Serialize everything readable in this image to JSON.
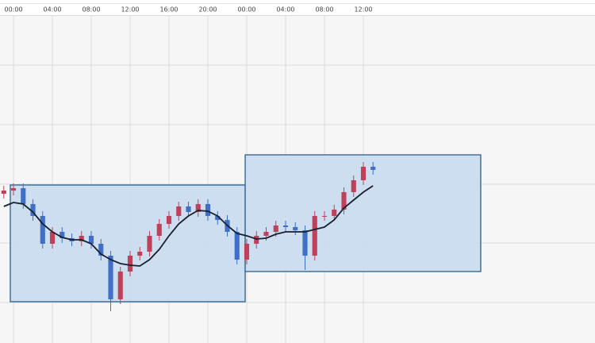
{
  "chart_data": {
    "type": "candlestick",
    "xlim": [
      -1.39,
      59.84
    ],
    "xticks": [
      {
        "value": 0,
        "label": "00:00"
      },
      {
        "value": 4,
        "label": "04:00"
      },
      {
        "value": 8,
        "label": "08:00"
      },
      {
        "value": 12,
        "label": "12:00"
      },
      {
        "value": 16,
        "label": "16:00"
      },
      {
        "value": 20,
        "label": "20:00"
      },
      {
        "value": 24,
        "label": "00:00"
      },
      {
        "value": 28,
        "label": "04:00"
      },
      {
        "value": 32,
        "label": "08:00"
      },
      {
        "value": 36,
        "label": "12:00"
      }
    ],
    "ylim": [
      0,
      412
    ],
    "hgrid": [
      51,
      126,
      200,
      275,
      350
    ],
    "grid": true,
    "up_color": "#c0405a",
    "down_color": "#3f6fc6",
    "x": [
      -1,
      0,
      1,
      2,
      3,
      4,
      5,
      6,
      7,
      8,
      9,
      10,
      11,
      12,
      13,
      14,
      15,
      16,
      17,
      18,
      19,
      20,
      21,
      22,
      23,
      24,
      25,
      26,
      27,
      28,
      29,
      30,
      31,
      32,
      33,
      34,
      35,
      36,
      37
    ],
    "open": [
      188,
      192,
      195,
      175,
      160,
      125,
      140,
      132,
      128,
      135,
      125,
      110,
      55,
      90,
      110,
      115,
      135,
      150,
      160,
      172,
      165,
      175,
      160,
      155,
      140,
      105,
      125,
      135,
      140,
      148,
      146,
      142,
      110,
      160,
      160,
      168,
      190,
      205,
      222
    ],
    "high": [
      198,
      201,
      201,
      181,
      166,
      146,
      146,
      138,
      141,
      141,
      131,
      116,
      96,
      116,
      121,
      141,
      156,
      166,
      178,
      178,
      181,
      181,
      166,
      161,
      146,
      131,
      141,
      146,
      154,
      154,
      152,
      148,
      166,
      166,
      174,
      196,
      211,
      228,
      228
    ],
    "low": [
      182,
      186,
      169,
      154,
      119,
      119,
      126,
      122,
      122,
      119,
      104,
      40,
      49,
      84,
      104,
      109,
      129,
      144,
      154,
      159,
      159,
      154,
      149,
      134,
      99,
      99,
      119,
      129,
      134,
      140,
      136,
      92,
      104,
      154,
      154,
      162,
      184,
      199,
      212
    ],
    "close": [
      192,
      195,
      175,
      160,
      125,
      140,
      132,
      128,
      135,
      125,
      110,
      55,
      90,
      110,
      115,
      135,
      150,
      160,
      172,
      165,
      175,
      160,
      155,
      140,
      105,
      125,
      135,
      140,
      148,
      146,
      142,
      110,
      160,
      160,
      168,
      190,
      205,
      222,
      218
    ],
    "moving_average": {
      "color": "#1a1f2e",
      "values": [
        172,
        177,
        175,
        165,
        150,
        140,
        133,
        130,
        130,
        125,
        112,
        105,
        100,
        98,
        97,
        105,
        118,
        135,
        150,
        160,
        167,
        166,
        160,
        148,
        138,
        135,
        131,
        132,
        137,
        140,
        140,
        140,
        143,
        146,
        155,
        170,
        180,
        190,
        198
      ]
    },
    "ranges": [
      {
        "x": [
          -0.33,
          23.84
        ],
        "y": [
          52,
          199
        ],
        "color": "#c9dcef",
        "stroke": "#2c5f8a"
      },
      {
        "x": [
          23.84,
          48.08
        ],
        "y": [
          90,
          237
        ],
        "color": "#c9dcef",
        "stroke": "#2c5f8a"
      }
    ]
  }
}
